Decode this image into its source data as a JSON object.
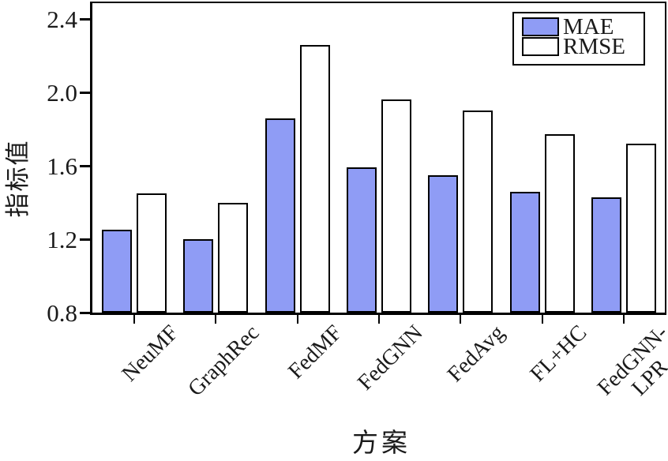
{
  "chart_data": {
    "type": "bar",
    "title": "",
    "xlabel": "方案",
    "ylabel": "指标值",
    "ylim": [
      0.8,
      2.49
    ],
    "ytick_labels": [
      "0.8",
      "1.2",
      "1.6",
      "2.0",
      "2.4"
    ],
    "ytick_values": [
      0.8,
      1.2,
      1.6,
      2.0,
      2.4
    ],
    "grid": false,
    "legend_position": "top-right-inside",
    "categories": [
      "NeuMF",
      "GraphRec",
      "FedMF",
      "FedGNN",
      "FedAvg",
      "FL+HC",
      "FedGNN-LPR"
    ],
    "category_display": [
      "NeuMF",
      "GraphRec",
      "FedMF",
      "FedGNN",
      "FedAvg",
      "FL+HC",
      "FedGNN-\nLPR"
    ],
    "series": [
      {
        "name": "MAE",
        "color": "#8f9cf5",
        "values": [
          1.25,
          1.2,
          1.86,
          1.59,
          1.55,
          1.46,
          1.43
        ]
      },
      {
        "name": "RMSE",
        "color": "#ffffff",
        "values": [
          1.45,
          1.4,
          2.26,
          1.96,
          1.9,
          1.77,
          1.72
        ]
      }
    ],
    "bar_border_color": "#000000"
  }
}
